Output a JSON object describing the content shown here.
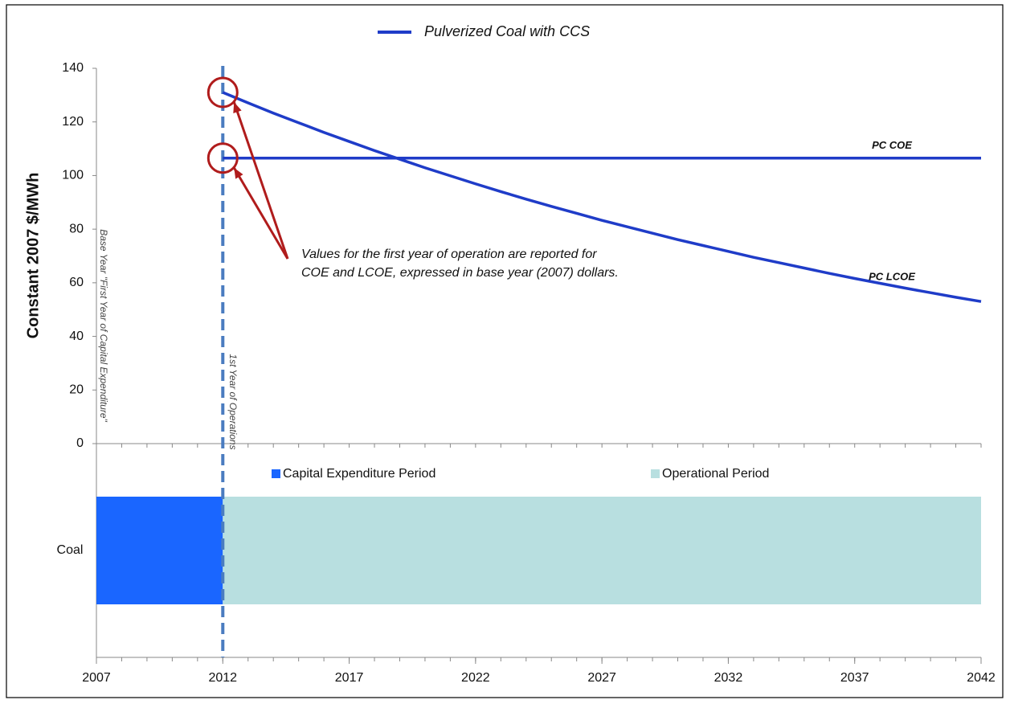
{
  "chart_data": [
    {
      "type": "line",
      "legend_label": "Pulverized Coal with CCS",
      "ylabel": "Constant 2007 $/MWh",
      "xlim": [
        2007,
        2042
      ],
      "ylim": [
        0,
        140
      ],
      "yticks": [
        0,
        20,
        40,
        60,
        80,
        100,
        120,
        140
      ],
      "series": [
        {
          "name": "PC COE",
          "color": "#1f3cc8",
          "x": [
            2012,
            2042
          ],
          "values": [
            106.5,
            106.5
          ]
        },
        {
          "name": "PC LCOE",
          "color": "#1f3cc8",
          "x": [
            2012,
            2013,
            2014,
            2015,
            2016,
            2017,
            2018,
            2019,
            2020,
            2021,
            2022,
            2023,
            2024,
            2025,
            2026,
            2027,
            2028,
            2029,
            2030,
            2031,
            2032,
            2033,
            2034,
            2035,
            2036,
            2037,
            2038,
            2039,
            2040,
            2041,
            2042
          ],
          "values": [
            131,
            127.1,
            123.3,
            119.7,
            116.1,
            112.7,
            109.3,
            106.1,
            102.9,
            99.9,
            96.9,
            94.0,
            91.2,
            88.5,
            85.9,
            83.3,
            80.9,
            78.5,
            76.1,
            73.9,
            71.7,
            69.5,
            67.5,
            65.5,
            63.5,
            61.6,
            59.8,
            58.0,
            56.3,
            54.6,
            53.0
          ]
        }
      ],
      "vline": {
        "x": 2012,
        "label": "1st Year of Operations",
        "color": "#4a7cc0"
      },
      "base_label": "Base Year \"First Year of Capital Expenditure\"",
      "annotation": [
        "Values for the first year of operation are reported for",
        "COE and LCOE, expressed in base year (2007) dollars."
      ],
      "annotation_color": "#b01c1c"
    },
    {
      "type": "gantt",
      "categories": [
        "Coal"
      ],
      "xlim": [
        2007,
        2042
      ],
      "xticks": [
        2007,
        2012,
        2017,
        2022,
        2027,
        2032,
        2037,
        2042
      ],
      "series": [
        {
          "name": "Capital Expenditure Period",
          "color": "#1a66ff",
          "start": [
            2007
          ],
          "end": [
            2012
          ]
        },
        {
          "name": "Operational Period",
          "color": "#b8dfe0",
          "start": [
            2012
          ],
          "end": [
            2042
          ]
        }
      ]
    }
  ]
}
